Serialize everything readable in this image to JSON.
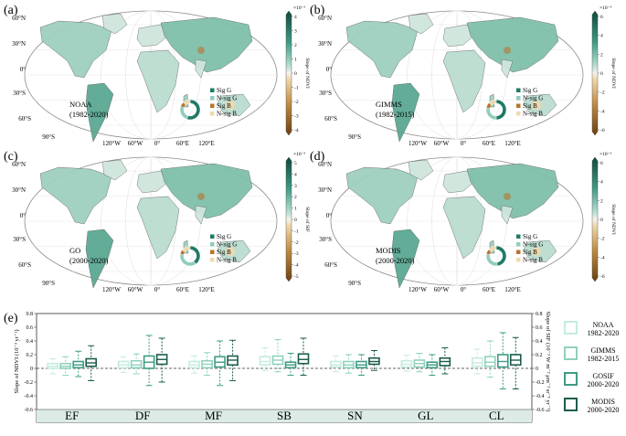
{
  "panels": [
    {
      "label": "(a)",
      "name": "NOAA",
      "years": "(1982-2020)",
      "cbar_unit": "×10⁻³",
      "cbar_title": "Slope of NDVI",
      "cbar_ticks": [
        "4",
        "3",
        "2",
        "1",
        "0",
        "-1",
        "-2",
        "-3",
        "-4"
      ],
      "pie": {
        "sig_g": 55,
        "nsig_g": 25,
        "sig_b": 8,
        "nsig_b": 12
      },
      "mapcolor": "#cfe7de"
    },
    {
      "label": "(b)",
      "name": "GIMMS",
      "years": "(1982-2015)",
      "cbar_unit": "×10⁻³",
      "cbar_title": "Slope of NDVI",
      "cbar_ticks": [
        "6",
        "4",
        "2",
        "0",
        "-2",
        "-4",
        "-6"
      ],
      "pie": {
        "sig_g": 50,
        "nsig_g": 28,
        "sig_b": 9,
        "nsig_b": 13
      },
      "mapcolor": "#d2e8e0"
    },
    {
      "label": "(c)",
      "name": "GO",
      "years": "(2000-2020)",
      "cbar_unit": "×10⁻³",
      "cbar_title": "Slope of SIF",
      "cbar_ticks": [
        "5",
        "4",
        "3",
        "2",
        "1",
        "0",
        "-1",
        "-2",
        "-3",
        "-4",
        "-5"
      ],
      "pie": {
        "sig_g": 40,
        "nsig_g": 38,
        "sig_b": 7,
        "nsig_b": 15
      },
      "mapcolor": "#d6ebe3"
    },
    {
      "label": "(d)",
      "name": "MODIS",
      "years": "(2000-2020)",
      "cbar_unit": "×10⁻³",
      "cbar_title": "Slope of NDVI",
      "cbar_ticks": [
        "6",
        "4",
        "2",
        "0",
        "-2",
        "-4",
        "-6"
      ],
      "pie": {
        "sig_g": 48,
        "nsig_g": 30,
        "sig_b": 8,
        "nsig_b": 14
      },
      "mapcolor": "#cbe5db"
    }
  ],
  "map_legend": [
    "Sig G",
    "N-sig G",
    "Sig B",
    "N-sig B"
  ],
  "lat_labels": [
    "60°N",
    "30°N",
    "0°",
    "30°S",
    "60°S",
    "90°S"
  ],
  "lon_labels": [
    "120°W",
    "60°W",
    "0°",
    "60°E",
    "120°E"
  ],
  "colors": {
    "sig_g": "#1f7a65",
    "nsig_g": "#8fcdbd",
    "sig_b": "#b5772e",
    "nsig_b": "#f0d8b0",
    "noaa": "#c6ebe0",
    "gimms": "#8fd1bd",
    "gosif": "#3e9c86",
    "modis": "#1b5c4d"
  },
  "panel_e": {
    "label": "(e)",
    "ylabel_left": "Slope of NDVI (10⁻³ yr⁻¹)",
    "ylabel_right": "Slope of SIF (10⁻³ W m⁻² μm⁻¹ sr⁻¹ yr⁻¹)",
    "yticks": [
      "0.8",
      "0.6",
      "0.4",
      "0.2",
      "0",
      "-0.2",
      "-0.4",
      "-0.6"
    ],
    "legend": [
      {
        "name": "NOAA",
        "years": "1982-2020"
      },
      {
        "name": "GIMMS",
        "years": "1982-2015"
      },
      {
        "name": "GOSIF",
        "years": "2000-2020"
      },
      {
        "name": "MODIS",
        "years": "2000-2020"
      }
    ]
  },
  "chart_data": {
    "type": "box",
    "categories": [
      "EF",
      "DF",
      "MF",
      "SB",
      "SN",
      "GL",
      "CL"
    ],
    "ylim": [
      -0.6,
      0.8
    ],
    "reference_line": 0,
    "series": [
      {
        "name": "NOAA",
        "years": "1982-2020",
        "boxes": [
          {
            "min": -0.08,
            "q1": 0.0,
            "median": 0.03,
            "q3": 0.07,
            "max": 0.14
          },
          {
            "min": -0.06,
            "q1": 0.01,
            "median": 0.05,
            "q3": 0.1,
            "max": 0.17
          },
          {
            "min": -0.07,
            "q1": 0.01,
            "median": 0.05,
            "q3": 0.1,
            "max": 0.18
          },
          {
            "min": -0.03,
            "q1": 0.05,
            "median": 0.1,
            "q3": 0.17,
            "max": 0.3
          },
          {
            "min": -0.05,
            "q1": 0.02,
            "median": 0.05,
            "q3": 0.1,
            "max": 0.18
          },
          {
            "min": -0.04,
            "q1": 0.02,
            "median": 0.06,
            "q3": 0.11,
            "max": 0.19
          },
          {
            "min": -0.08,
            "q1": 0.03,
            "median": 0.08,
            "q3": 0.15,
            "max": 0.28
          }
        ]
      },
      {
        "name": "GIMMS",
        "years": "1982-2015",
        "boxes": [
          {
            "min": -0.1,
            "q1": 0.0,
            "median": 0.03,
            "q3": 0.07,
            "max": 0.17
          },
          {
            "min": -0.08,
            "q1": 0.01,
            "median": 0.05,
            "q3": 0.11,
            "max": 0.21
          },
          {
            "min": -0.1,
            "q1": 0.01,
            "median": 0.06,
            "q3": 0.11,
            "max": 0.23
          },
          {
            "min": -0.05,
            "q1": 0.06,
            "median": 0.12,
            "q3": 0.18,
            "max": 0.42
          },
          {
            "min": -0.07,
            "q1": 0.01,
            "median": 0.05,
            "q3": 0.1,
            "max": 0.2
          },
          {
            "min": -0.05,
            "q1": 0.02,
            "median": 0.07,
            "q3": 0.12,
            "max": 0.22
          },
          {
            "min": -0.13,
            "q1": 0.03,
            "median": 0.09,
            "q3": 0.17,
            "max": 0.4
          }
        ]
      },
      {
        "name": "GOSIF",
        "years": "2000-2020",
        "boxes": [
          {
            "min": -0.12,
            "q1": 0.01,
            "median": 0.05,
            "q3": 0.1,
            "max": 0.25
          },
          {
            "min": -0.25,
            "q1": 0.0,
            "median": 0.09,
            "q3": 0.18,
            "max": 0.48
          },
          {
            "min": -0.25,
            "q1": 0.02,
            "median": 0.09,
            "q3": 0.17,
            "max": 0.4
          },
          {
            "min": -0.1,
            "q1": 0.01,
            "median": 0.05,
            "q3": 0.09,
            "max": 0.22
          },
          {
            "min": -0.1,
            "q1": 0.01,
            "median": 0.05,
            "q3": 0.1,
            "max": 0.2
          },
          {
            "min": -0.1,
            "q1": 0.01,
            "median": 0.05,
            "q3": 0.09,
            "max": 0.2
          },
          {
            "min": -0.3,
            "q1": 0.02,
            "median": 0.1,
            "q3": 0.2,
            "max": 0.52
          }
        ]
      },
      {
        "name": "MODIS",
        "years": "2000-2020",
        "boxes": [
          {
            "min": -0.18,
            "q1": 0.03,
            "median": 0.08,
            "q3": 0.14,
            "max": 0.33
          },
          {
            "min": -0.2,
            "q1": 0.06,
            "median": 0.13,
            "q3": 0.2,
            "max": 0.44
          },
          {
            "min": -0.18,
            "q1": 0.05,
            "median": 0.12,
            "q3": 0.18,
            "max": 0.41
          },
          {
            "min": -0.1,
            "q1": 0.07,
            "median": 0.13,
            "q3": 0.21,
            "max": 0.44
          },
          {
            "min": -0.03,
            "q1": 0.06,
            "median": 0.1,
            "q3": 0.15,
            "max": 0.26
          },
          {
            "min": -0.08,
            "q1": 0.04,
            "median": 0.1,
            "q3": 0.15,
            "max": 0.3
          },
          {
            "min": -0.3,
            "q1": 0.05,
            "median": 0.12,
            "q3": 0.2,
            "max": 0.45
          }
        ]
      }
    ]
  }
}
